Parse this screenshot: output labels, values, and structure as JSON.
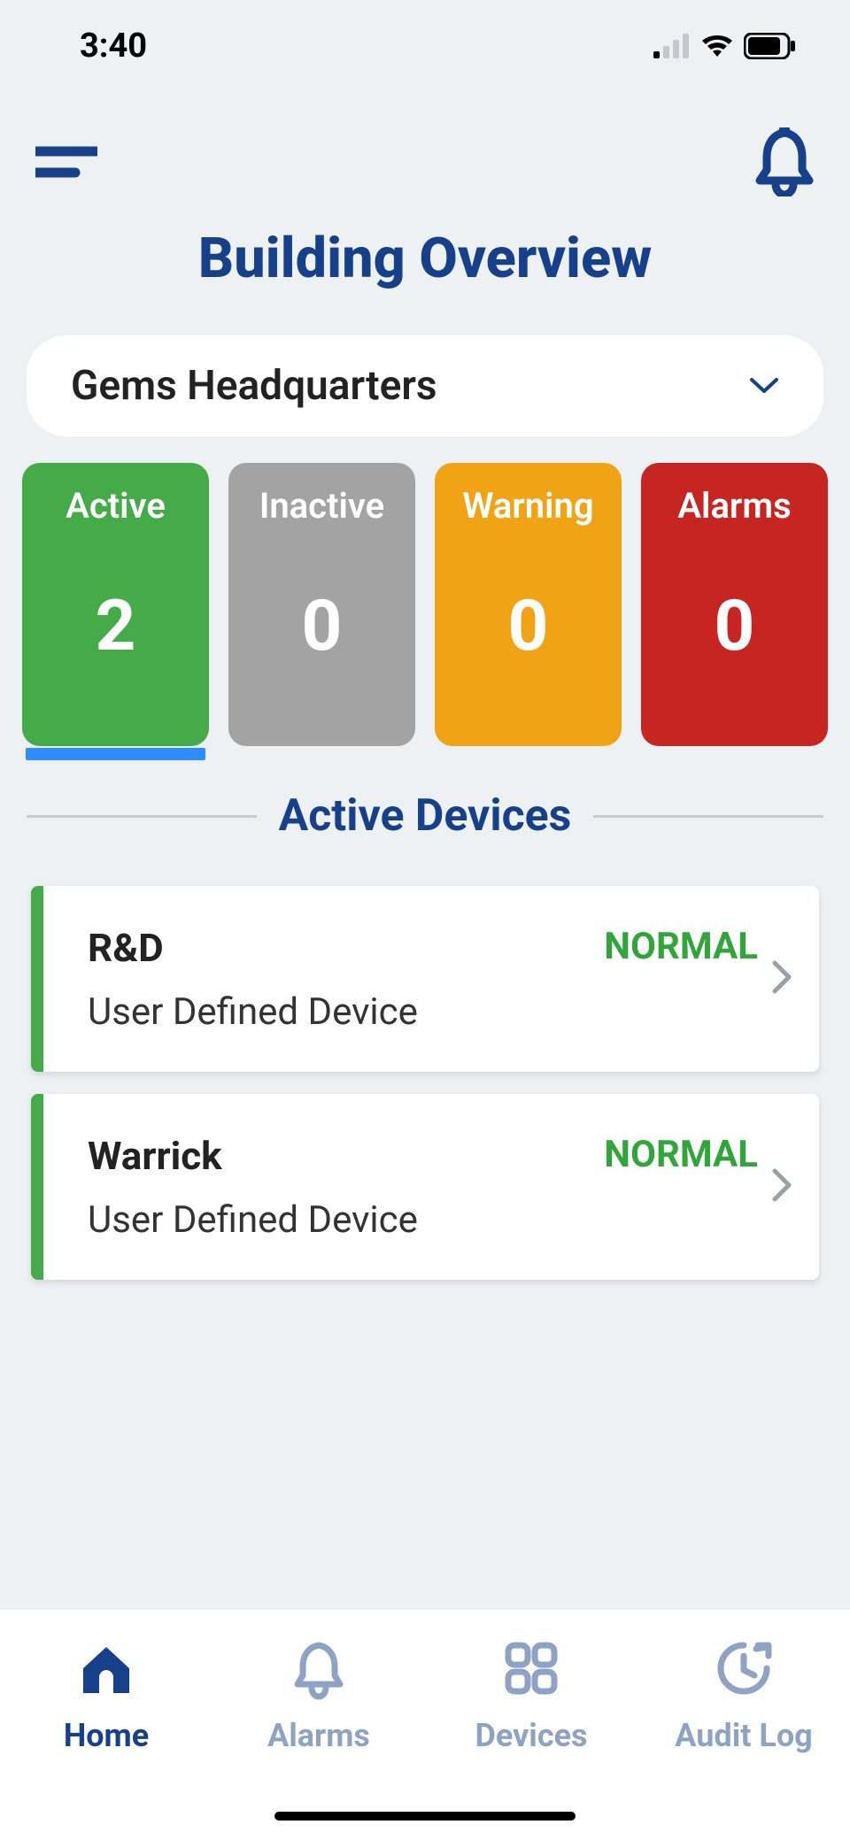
{
  "statusBar": {
    "time": "3:40"
  },
  "header": {
    "title": "Building Overview"
  },
  "buildingSelect": {
    "label": "Gems Headquarters"
  },
  "colors": {
    "brand": "#16408a",
    "active": "#45ab48",
    "inactive": "#a3a3a3",
    "warning": "#f1a316",
    "alarms": "#c62522",
    "statusNormal": "#2fa53a",
    "navInactive": "#8ea2c4",
    "selectedUnderline": "#2d8cff"
  },
  "tiles": [
    {
      "label": "Active",
      "count": "2",
      "color": "#45ab48",
      "selected": true
    },
    {
      "label": "Inactive",
      "count": "0",
      "color": "#a3a3a3",
      "selected": false
    },
    {
      "label": "Warning",
      "count": "0",
      "color": "#f1a316",
      "selected": false
    },
    {
      "label": "Alarms",
      "count": "0",
      "color": "#c62522",
      "selected": false
    }
  ],
  "section": {
    "title": "Active Devices"
  },
  "devices": [
    {
      "name": "R&D",
      "type": "User Defined Device",
      "status": "NORMAL",
      "statusColor": "#2fa53a",
      "accentColor": "#45ab48"
    },
    {
      "name": "Warrick",
      "type": "User Defined Device",
      "status": "NORMAL",
      "statusColor": "#2fa53a",
      "accentColor": "#45ab48"
    }
  ],
  "nav": [
    {
      "label": "Home",
      "icon": "home-icon",
      "active": true
    },
    {
      "label": "Alarms",
      "icon": "bell-icon",
      "active": false
    },
    {
      "label": "Devices",
      "icon": "grid-icon",
      "active": false
    },
    {
      "label": "Audit Log",
      "icon": "clock-icon",
      "active": false
    }
  ]
}
